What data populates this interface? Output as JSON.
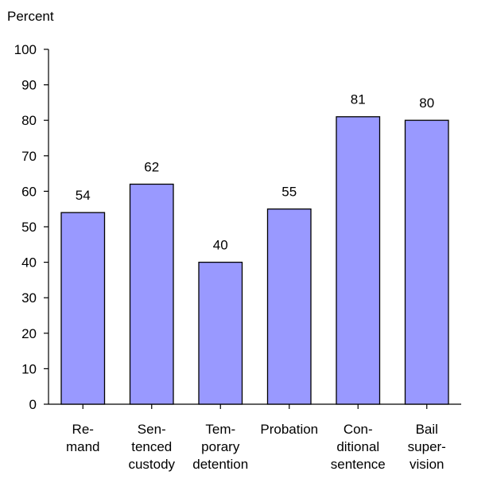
{
  "chart_data": {
    "type": "bar",
    "ylabel": "Percent",
    "xlabel": "",
    "ylim": [
      0,
      100
    ],
    "yticks": [
      0,
      10,
      20,
      30,
      40,
      50,
      60,
      70,
      80,
      90,
      100
    ],
    "grid": false,
    "categories": [
      [
        "Re-",
        "mand"
      ],
      [
        "Sen-",
        "tenced",
        "custody"
      ],
      [
        "Tem-",
        "porary",
        "detention"
      ],
      [
        "Probation"
      ],
      [
        "Con-",
        "ditional",
        "sentence"
      ],
      [
        "Bail",
        "super-",
        "vision"
      ]
    ],
    "values": [
      54,
      62,
      40,
      55,
      81,
      80
    ],
    "data_labels": [
      "54",
      "62",
      "40",
      "55",
      "81",
      "80"
    ],
    "colors": {
      "bar_fill": "#9999FF",
      "bar_stroke": "#000000",
      "axis": "#000000"
    }
  }
}
